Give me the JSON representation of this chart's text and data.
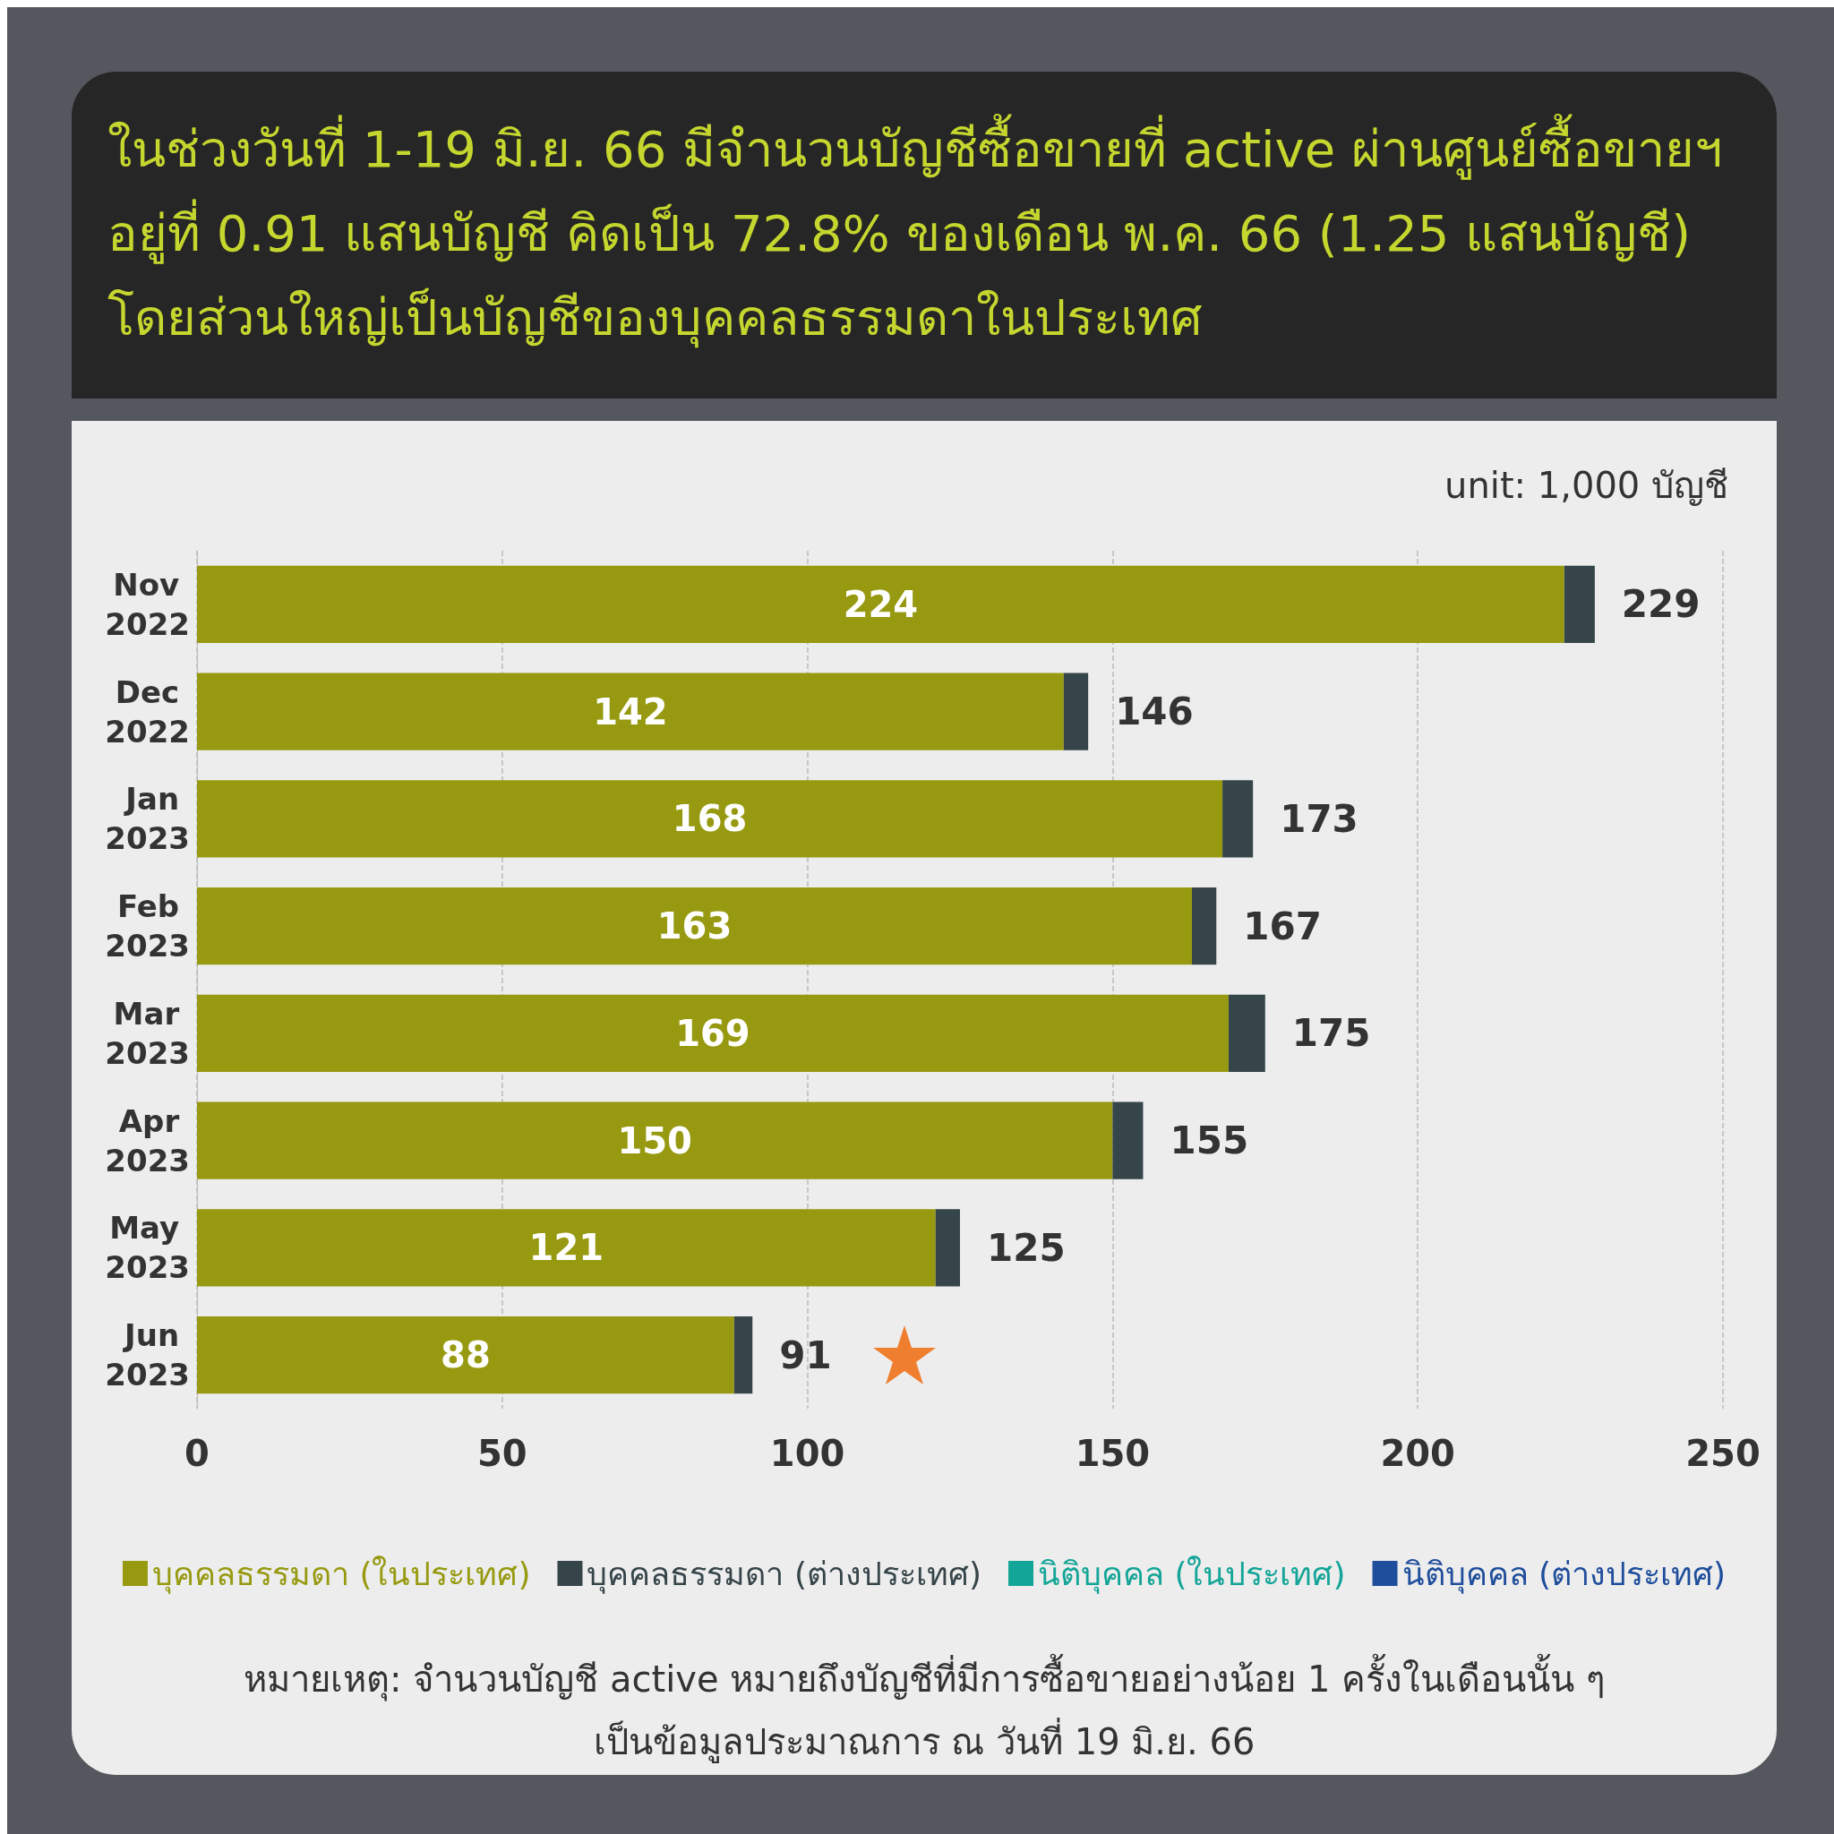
{
  "chart_data": {
    "type": "bar",
    "orientation": "horizontal",
    "stacked": true,
    "title": "ในช่วงวันที่ 1-19 มิ.ย. 66 มีจำนวนบัญชีซื้อขายที่ active ผ่านศูนย์ซื้อขายฯ อยู่ที่ 0.91 แสนบัญชี คิดเป็น 72.8% ของเดือน พ.ค. 66 (1.25 แสนบัญชี) โดยส่วนใหญ่เป็นบัญชีของบุคคลธรรมดาในประเทศ",
    "subtitle": "unit: 1,000 บัญชี",
    "categories": [
      "Nov 2022",
      "Dec 2022",
      "Jan 2023",
      "Feb 2023",
      "Mar 2023",
      "Apr 2023",
      "May 2023",
      "Jun 2023"
    ],
    "series": [
      {
        "name": "บุคคลธรรมดา (ในประเทศ)",
        "color": "#979a10",
        "values": [
          224,
          142,
          168,
          163,
          169,
          150,
          121,
          88
        ],
        "value_labels": [
          "224",
          "142",
          "168",
          "163",
          "169",
          "150",
          "121",
          "88"
        ]
      },
      {
        "name": "บุคคลธรรมดา (ต่างประเทศ)",
        "color": "#36454a",
        "values": [
          5,
          4,
          5,
          4,
          6,
          5,
          4,
          3
        ]
      },
      {
        "name": "นิติบุคคล (ในประเทศ)",
        "color": "#13a597",
        "values": [
          null,
          null,
          null,
          null,
          null,
          null,
          null,
          null
        ]
      },
      {
        "name": "นิติบุคคล (ต่างประเทศ)",
        "color": "#1f4e9c",
        "values": [
          null,
          null,
          null,
          null,
          null,
          null,
          null,
          null
        ]
      }
    ],
    "totals": [
      "229",
      "146",
      "173",
      "167",
      "175",
      "155",
      "125",
      "91"
    ],
    "xlim": [
      0,
      250
    ],
    "xticks": [
      0,
      50,
      100,
      150,
      200,
      250
    ],
    "grid": "x",
    "legend": "bottom",
    "annotations": [
      "หมายเหตุ: จำนวนบัญชี active หมายถึงบัญชีที่มีการซื้อขายอย่างน้อย 1 ครั้งในเดือนนั้น ๆ",
      "เป็นข้อมูลประมาณการ ณ วันที่ 19 มิ.ย. 66"
    ]
  }
}
